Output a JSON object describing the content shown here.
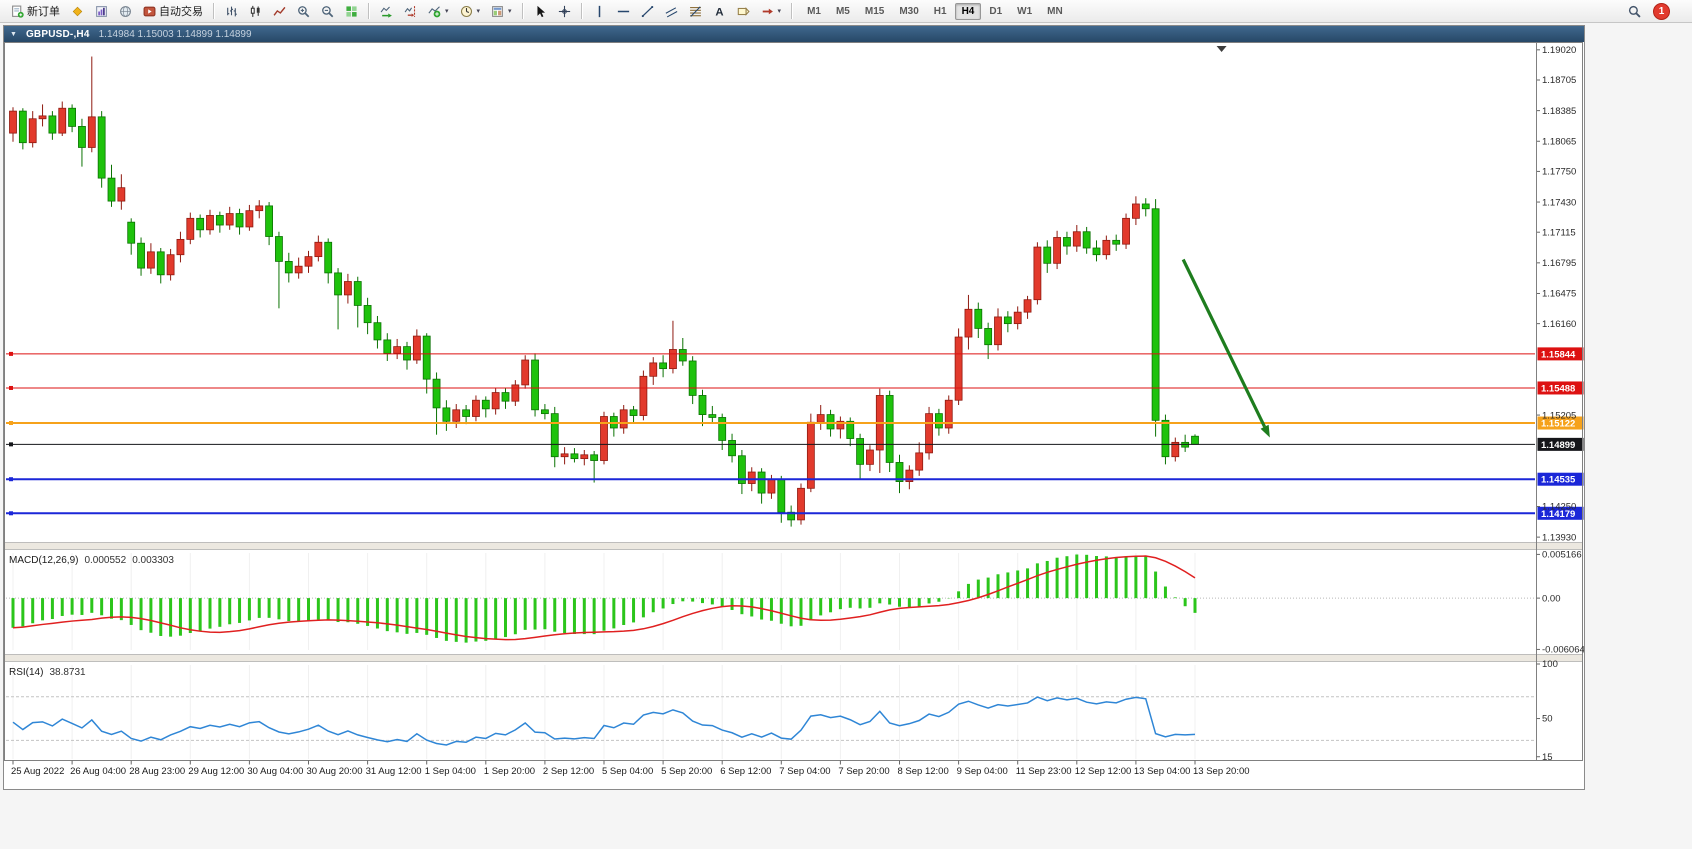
{
  "toolbar": {
    "caret_glyph": "▾",
    "items": [
      {
        "t": "btn",
        "name": "new-order-button",
        "icon": "new-order-icon",
        "label": "新订单"
      },
      {
        "t": "btn",
        "name": "metaquotes-button",
        "icon": "mq-icon"
      },
      {
        "t": "btn",
        "name": "charts-panel-button",
        "icon": "charts-icon"
      },
      {
        "t": "btn",
        "name": "history-center-button",
        "icon": "globe-icon"
      },
      {
        "t": "btn",
        "name": "autotrading-button",
        "icon": "autotrade-icon",
        "label": "自动交易"
      },
      {
        "t": "sep"
      },
      {
        "t": "btn",
        "name": "bar-chart-button",
        "icon": "bar-chart-icon"
      },
      {
        "t": "btn",
        "name": "candlestick-chart-button",
        "icon": "candles-icon"
      },
      {
        "t": "btn",
        "name": "line-chart-button",
        "icon": "line-chart-icon"
      },
      {
        "t": "btn",
        "name": "zoom-in-button",
        "icon": "zoom-in-icon"
      },
      {
        "t": "btn",
        "name": "zoom-out-button",
        "icon": "zoom-out-icon"
      },
      {
        "t": "btn",
        "name": "tile-windows-button",
        "icon": "tile-windows-icon"
      },
      {
        "t": "sep"
      },
      {
        "t": "btn",
        "name": "auto-scroll-button",
        "icon": "auto-scroll-icon"
      },
      {
        "t": "btn",
        "name": "chart-shift-button",
        "icon": "chart-shift-icon"
      },
      {
        "t": "btn",
        "name": "indicators-button",
        "icon": "indicators-icon",
        "caret": true
      },
      {
        "t": "btn",
        "name": "periods-button",
        "icon": "clock-icon",
        "caret": true
      },
      {
        "t": "btn",
        "name": "templates-button",
        "icon": "template-icon",
        "caret": true
      },
      {
        "t": "sep"
      },
      {
        "t": "btn",
        "name": "cursor-button",
        "icon": "cursor-icon"
      },
      {
        "t": "btn",
        "name": "crosshair-button",
        "icon": "crosshair-icon"
      },
      {
        "t": "sep"
      },
      {
        "t": "btn",
        "name": "vertical-line-button",
        "icon": "vline-icon"
      },
      {
        "t": "btn",
        "name": "horizontal-line-button",
        "icon": "hline-icon"
      },
      {
        "t": "btn",
        "name": "trendline-button",
        "icon": "trendline-icon"
      },
      {
        "t": "btn",
        "name": "channel-button",
        "icon": "channel-icon"
      },
      {
        "t": "btn",
        "name": "fibonacci-button",
        "icon": "fibo-icon"
      },
      {
        "t": "btn",
        "name": "text-button",
        "icon": "text-icon"
      },
      {
        "t": "btn",
        "name": "text-label-button",
        "icon": "label-icon"
      },
      {
        "t": "btn",
        "name": "arrows-button",
        "icon": "arrows-tool-icon",
        "caret": true
      },
      {
        "t": "sep"
      }
    ],
    "timeframes": {
      "options": [
        "M1",
        "M5",
        "M15",
        "M30",
        "H1",
        "H4",
        "D1",
        "W1",
        "MN"
      ],
      "active": "H4"
    },
    "notification_count": "1"
  },
  "chart_window": {
    "menu_glyph": "▼",
    "symbol_period": "GBPUSD-,H4",
    "ohlc": "1.14984 1.15003 1.14899 1.14899"
  },
  "chart_data": {
    "type": "candlestick",
    "symbol": "GBPUSD-",
    "period": "H4",
    "up_color": "#e23a2c",
    "up_border": "#8f1a10",
    "down_color": "#1ec20c",
    "down_border": "#0b7203",
    "price_max": 1.1906,
    "price_min": 1.139,
    "candles": [
      [
        1.1815,
        1.1842,
        1.1806,
        1.1838
      ],
      [
        1.1838,
        1.1841,
        1.1798,
        1.1805
      ],
      [
        1.1805,
        1.1838,
        1.18,
        1.183
      ],
      [
        1.183,
        1.1845,
        1.1822,
        1.1833
      ],
      [
        1.1833,
        1.1838,
        1.1808,
        1.1815
      ],
      [
        1.1815,
        1.1848,
        1.1812,
        1.1841
      ],
      [
        1.1841,
        1.1845,
        1.1816,
        1.1822
      ],
      [
        1.1822,
        1.183,
        1.178,
        1.18
      ],
      [
        1.18,
        1.1895,
        1.1795,
        1.1832
      ],
      [
        1.1832,
        1.1838,
        1.1758,
        1.1768
      ],
      [
        1.1768,
        1.1782,
        1.1738,
        1.1744
      ],
      [
        1.1744,
        1.1772,
        1.1735,
        1.1758
      ],
      [
        1.1722,
        1.1726,
        1.1688,
        1.17
      ],
      [
        1.17,
        1.1706,
        1.1666,
        1.1674
      ],
      [
        1.1674,
        1.17,
        1.1668,
        1.1691
      ],
      [
        1.1691,
        1.1695,
        1.1658,
        1.1667
      ],
      [
        1.1667,
        1.1694,
        1.1661,
        1.1688
      ],
      [
        1.1688,
        1.1712,
        1.168,
        1.1704
      ],
      [
        1.1704,
        1.1732,
        1.1699,
        1.1726
      ],
      [
        1.1726,
        1.173,
        1.1706,
        1.1714
      ],
      [
        1.1714,
        1.1735,
        1.1709,
        1.1729
      ],
      [
        1.1729,
        1.1733,
        1.1711,
        1.1719
      ],
      [
        1.1719,
        1.1738,
        1.1714,
        1.1731
      ],
      [
        1.1731,
        1.1736,
        1.1709,
        1.1717
      ],
      [
        1.1717,
        1.174,
        1.1713,
        1.1734
      ],
      [
        1.1734,
        1.1745,
        1.1726,
        1.1739
      ],
      [
        1.1739,
        1.1743,
        1.1698,
        1.1707
      ],
      [
        1.1707,
        1.1712,
        1.1632,
        1.1681
      ],
      [
        1.1681,
        1.169,
        1.1659,
        1.1669
      ],
      [
        1.1669,
        1.1685,
        1.1663,
        1.1676
      ],
      [
        1.1676,
        1.1692,
        1.1669,
        1.1686
      ],
      [
        1.1686,
        1.1708,
        1.1681,
        1.1701
      ],
      [
        1.1701,
        1.1705,
        1.1658,
        1.1669
      ],
      [
        1.1669,
        1.1674,
        1.161,
        1.1646
      ],
      [
        1.1646,
        1.1668,
        1.1637,
        1.166
      ],
      [
        1.166,
        1.1665,
        1.1612,
        1.1635
      ],
      [
        1.1635,
        1.1643,
        1.1605,
        1.1617
      ],
      [
        1.1617,
        1.1624,
        1.159,
        1.1599
      ],
      [
        1.1599,
        1.1606,
        1.1577,
        1.1585
      ],
      [
        1.1585,
        1.16,
        1.1579,
        1.1592
      ],
      [
        1.1592,
        1.1597,
        1.1568,
        1.1578
      ],
      [
        1.1578,
        1.161,
        1.1574,
        1.1603
      ],
      [
        1.1603,
        1.1606,
        1.1543,
        1.1558
      ],
      [
        1.1558,
        1.1565,
        1.15,
        1.1528
      ],
      [
        1.1528,
        1.1536,
        1.1504,
        1.1514
      ],
      [
        1.1514,
        1.1532,
        1.1507,
        1.1526
      ],
      [
        1.1526,
        1.1531,
        1.1511,
        1.1519
      ],
      [
        1.1519,
        1.1541,
        1.1514,
        1.1536
      ],
      [
        1.1536,
        1.154,
        1.1518,
        1.1527
      ],
      [
        1.1527,
        1.1549,
        1.1521,
        1.1544
      ],
      [
        1.1544,
        1.1549,
        1.1527,
        1.1535
      ],
      [
        1.1535,
        1.1557,
        1.153,
        1.1552
      ],
      [
        1.1552,
        1.1583,
        1.1548,
        1.1578
      ],
      [
        1.1578,
        1.1585,
        1.1519,
        1.1526
      ],
      [
        1.1526,
        1.1532,
        1.1516,
        1.1522
      ],
      [
        1.1522,
        1.1529,
        1.1466,
        1.1477
      ],
      [
        1.1477,
        1.1487,
        1.1469,
        1.148
      ],
      [
        1.148,
        1.1486,
        1.1471,
        1.1475
      ],
      [
        1.1475,
        1.1484,
        1.1468,
        1.1479
      ],
      [
        1.1479,
        1.1483,
        1.145,
        1.1473
      ],
      [
        1.1473,
        1.1524,
        1.1469,
        1.1519
      ],
      [
        1.1519,
        1.1523,
        1.1498,
        1.1507
      ],
      [
        1.1507,
        1.1531,
        1.1501,
        1.1526
      ],
      [
        1.1526,
        1.153,
        1.1512,
        1.152
      ],
      [
        1.152,
        1.1567,
        1.1515,
        1.1561
      ],
      [
        1.1561,
        1.1581,
        1.1552,
        1.1575
      ],
      [
        1.1575,
        1.1583,
        1.156,
        1.1569
      ],
      [
        1.1569,
        1.1619,
        1.1564,
        1.1589
      ],
      [
        1.1589,
        1.1601,
        1.1572,
        1.1577
      ],
      [
        1.1577,
        1.1582,
        1.1532,
        1.1541
      ],
      [
        1.1541,
        1.1547,
        1.1509,
        1.1521
      ],
      [
        1.1521,
        1.153,
        1.1512,
        1.1518
      ],
      [
        1.1518,
        1.1522,
        1.1484,
        1.1494
      ],
      [
        1.1494,
        1.1501,
        1.1471,
        1.1478
      ],
      [
        1.1478,
        1.1484,
        1.1438,
        1.1449
      ],
      [
        1.1449,
        1.1466,
        1.1441,
        1.1461
      ],
      [
        1.1461,
        1.1465,
        1.1428,
        1.1439
      ],
      [
        1.1439,
        1.1458,
        1.1433,
        1.1453
      ],
      [
        1.1453,
        1.1457,
        1.1408,
        1.1419
      ],
      [
        1.1419,
        1.1426,
        1.1404,
        1.1411
      ],
      [
        1.1411,
        1.1449,
        1.1406,
        1.1444
      ],
      [
        1.1444,
        1.1522,
        1.144,
        1.1513
      ],
      [
        1.1513,
        1.1531,
        1.1505,
        1.1521
      ],
      [
        1.1521,
        1.1526,
        1.1498,
        1.1506
      ],
      [
        1.1506,
        1.1519,
        1.1496,
        1.1514
      ],
      [
        1.1514,
        1.1518,
        1.1488,
        1.1496
      ],
      [
        1.1496,
        1.1501,
        1.1454,
        1.1469
      ],
      [
        1.1469,
        1.1489,
        1.1462,
        1.1484
      ],
      [
        1.1484,
        1.1548,
        1.146,
        1.1541
      ],
      [
        1.1541,
        1.1546,
        1.1461,
        1.1471
      ],
      [
        1.1471,
        1.1479,
        1.1439,
        1.1451
      ],
      [
        1.1451,
        1.1468,
        1.1443,
        1.1463
      ],
      [
        1.1463,
        1.1492,
        1.1457,
        1.1481
      ],
      [
        1.1481,
        1.1529,
        1.1474,
        1.1522
      ],
      [
        1.1522,
        1.1527,
        1.1499,
        1.1507
      ],
      [
        1.1507,
        1.1541,
        1.1501,
        1.1536
      ],
      [
        1.1536,
        1.1611,
        1.1531,
        1.1602
      ],
      [
        1.1602,
        1.1646,
        1.1589,
        1.1631
      ],
      [
        1.1631,
        1.1638,
        1.1601,
        1.1611
      ],
      [
        1.1611,
        1.1617,
        1.1579,
        1.1594
      ],
      [
        1.1594,
        1.1632,
        1.1588,
        1.1623
      ],
      [
        1.1623,
        1.1629,
        1.1607,
        1.1616
      ],
      [
        1.1616,
        1.1634,
        1.161,
        1.1628
      ],
      [
        1.1628,
        1.1645,
        1.1621,
        1.1641
      ],
      [
        1.1641,
        1.1701,
        1.1636,
        1.1696
      ],
      [
        1.1696,
        1.1703,
        1.1669,
        1.1679
      ],
      [
        1.1679,
        1.1713,
        1.1673,
        1.1706
      ],
      [
        1.1706,
        1.1712,
        1.1688,
        1.1697
      ],
      [
        1.1697,
        1.1719,
        1.1691,
        1.1712
      ],
      [
        1.1712,
        1.1717,
        1.1689,
        1.1695
      ],
      [
        1.1695,
        1.1703,
        1.1681,
        1.1688
      ],
      [
        1.1688,
        1.1708,
        1.1683,
        1.1703
      ],
      [
        1.1703,
        1.1709,
        1.1692,
        1.1699
      ],
      [
        1.1699,
        1.1731,
        1.1694,
        1.1726
      ],
      [
        1.1726,
        1.1749,
        1.1719,
        1.1741
      ],
      [
        1.1741,
        1.1747,
        1.1728,
        1.1736
      ],
      [
        1.1736,
        1.1746,
        1.1498,
        1.1515
      ],
      [
        1.1515,
        1.1521,
        1.1469,
        1.1477
      ],
      [
        1.1477,
        1.1497,
        1.1472,
        1.1492
      ],
      [
        1.1492,
        1.15,
        1.1482,
        1.1487
      ],
      [
        1.14984,
        1.15003,
        1.14899,
        1.14899
      ]
    ],
    "label_every": 6,
    "date_labels": [
      "25 Aug 2022",
      "26 Aug 04:00",
      "28 Aug 23:00",
      "29 Aug 12:00",
      "30 Aug 04:00",
      "30 Aug 20:00",
      "31 Aug 12:00",
      "1 Sep 04:00",
      "1 Sep 20:00",
      "2 Sep 12:00",
      "5 Sep 04:00",
      "5 Sep 20:00",
      "6 Sep 12:00",
      "7 Sep 04:00",
      "7 Sep 20:00",
      "8 Sep 12:00",
      "9 Sep 04:00",
      "11 Sep 23:00",
      "12 Sep 12:00",
      "13 Sep 04:00",
      "13 Sep 20:00"
    ],
    "price_axis_labels": [
      {
        "value": 1.1902,
        "text": "1.19020"
      },
      {
        "value": 1.18705,
        "text": "1.18705"
      },
      {
        "value": 1.18385,
        "text": "1.18385"
      },
      {
        "value": 1.18065,
        "text": "1.18065"
      },
      {
        "value": 1.1775,
        "text": "1.17750"
      },
      {
        "value": 1.1743,
        "text": "1.17430"
      },
      {
        "value": 1.17115,
        "text": "1.17115"
      },
      {
        "value": 1.16795,
        "text": "1.16795"
      },
      {
        "value": 1.16475,
        "text": "1.16475"
      },
      {
        "value": 1.1616,
        "text": "1.16160"
      },
      {
        "value": 1.15205,
        "text": "1.15205"
      },
      {
        "value": 1.1425,
        "text": "1.14250"
      },
      {
        "value": 1.1393,
        "text": "1.13930"
      }
    ],
    "hlines": [
      {
        "price": 1.15844,
        "label": "1.15844",
        "color": "#dd1111",
        "width": 1
      },
      {
        "price": 1.15488,
        "label": "1.15488",
        "color": "#dd1111",
        "width": 1
      },
      {
        "price": 1.15122,
        "label": "1.15122",
        "color": "#f6a21b",
        "width": 2
      },
      {
        "price": 1.14899,
        "label": "1.14899",
        "color": "#15161a",
        "width": 1
      },
      {
        "price": 1.14535,
        "label": "1.14535",
        "color": "#1b27d8",
        "width": 2
      },
      {
        "price": 1.14179,
        "label": "1.14179",
        "color": "#1b27d8",
        "width": 2
      }
    ],
    "trend_arrow": {
      "from_bar": 118.8,
      "from_price": 1.1683,
      "to_bar": 127.6,
      "to_price": 1.1497,
      "color": "#1e7d1e",
      "width": 3.2
    },
    "shift_marker_bar": 122.7,
    "macd": {
      "label": "MACD(12,26,9)",
      "value_main": "0.000552",
      "value_signal": "0.003303",
      "fast": 12,
      "slow": 26,
      "signal_period": 9,
      "seed_fast_offset": -0.0025,
      "seed_slow_offset": 0.0015,
      "hist_color": "#2bc51b",
      "signal_color": "#e02020",
      "range_max": 0.00545,
      "range_min": -0.00625,
      "axis": [
        {
          "value": 0.005166,
          "text": "0.005166"
        },
        {
          "value": 0,
          "text": "0.00"
        },
        {
          "value": -0.006064,
          "text": "-0.006064"
        }
      ]
    },
    "rsi": {
      "label": "RSI(14)",
      "value": "38.8731",
      "period": 14,
      "seed_gain": 0.0007,
      "seed_loss": 0.0008,
      "line_color": "#2f86d6",
      "levels": [
        70,
        30
      ],
      "range_max": 100,
      "range_min": 12,
      "axis": [
        {
          "value": 100,
          "text": "100"
        },
        {
          "value": 50,
          "text": "50"
        },
        {
          "value": 15,
          "text": "15"
        }
      ]
    }
  }
}
